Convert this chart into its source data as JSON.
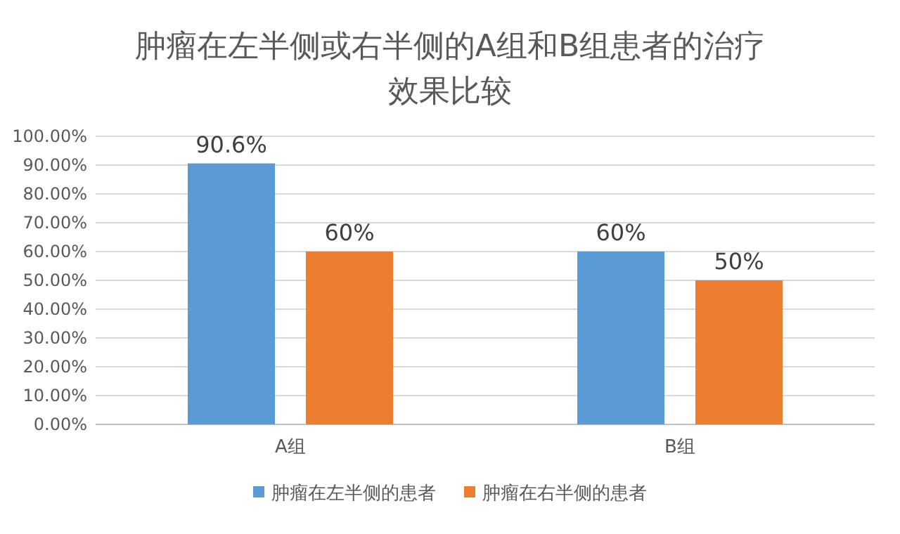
{
  "chart_data": {
    "type": "bar",
    "title": "肿瘤在左半侧或右半侧的A组和B组患者的治疗效果比较",
    "categories": [
      "A组",
      "B组"
    ],
    "series": [
      {
        "name": "肿瘤在左半侧的患者",
        "color": "#5b9bd5",
        "values": [
          90.6,
          60
        ],
        "value_labels": [
          "90.6%",
          "60%"
        ]
      },
      {
        "name": "肿瘤在右半侧的患者",
        "color": "#ed7d31",
        "values": [
          60,
          50
        ],
        "value_labels": [
          "60%",
          "50%"
        ]
      }
    ],
    "ylim": [
      0,
      100
    ],
    "yticks": [
      {
        "value": 0,
        "label": "0.00%"
      },
      {
        "value": 10,
        "label": "10.00%"
      },
      {
        "value": 20,
        "label": "20.00%"
      },
      {
        "value": 30,
        "label": "30.00%"
      },
      {
        "value": 40,
        "label": "40.00%"
      },
      {
        "value": 50,
        "label": "50.00%"
      },
      {
        "value": 60,
        "label": "60.00%"
      },
      {
        "value": 70,
        "label": "70.00%"
      },
      {
        "value": 80,
        "label": "80.00%"
      },
      {
        "value": 90,
        "label": "90.00%"
      },
      {
        "value": 100,
        "label": "100.00%"
      }
    ],
    "grid": "y",
    "legend": "bottom"
  }
}
